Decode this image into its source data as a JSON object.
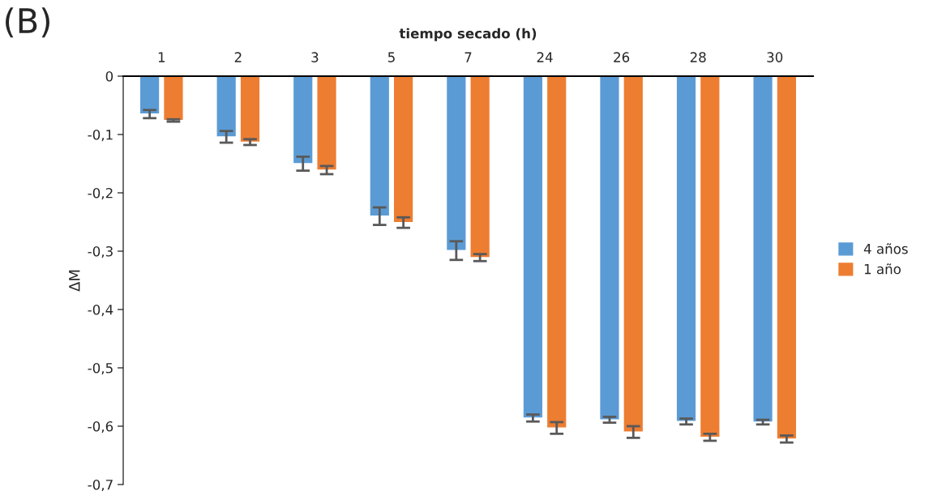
{
  "chart_data": {
    "type": "bar",
    "xlabel": "tiempo secado (h)",
    "ylabel": "ΔM",
    "categories": [
      "1",
      "2",
      "3",
      "5",
      "7",
      "24",
      "26",
      "28",
      "30"
    ],
    "series": [
      {
        "name": "4 años",
        "color": "#5b9bd5",
        "values": [
          -0.065,
          -0.104,
          -0.15,
          -0.24,
          -0.299,
          -0.586,
          -0.589,
          -0.592,
          -0.593
        ],
        "errors": [
          0.007,
          0.01,
          0.012,
          0.015,
          0.016,
          0.006,
          0.005,
          0.005,
          0.004
        ]
      },
      {
        "name": "1 año",
        "color": "#ed7d31",
        "values": [
          -0.076,
          -0.113,
          -0.161,
          -0.251,
          -0.311,
          -0.603,
          -0.61,
          -0.619,
          -0.622
        ],
        "errors": [
          0.002,
          0.005,
          0.007,
          0.009,
          0.006,
          0.01,
          0.01,
          0.006,
          0.006
        ]
      }
    ],
    "ylim": [
      -0.7,
      0
    ],
    "yticks": [
      0,
      {
        "value": -0.1,
        "label": "-0,1"
      },
      {
        "value": -0.2,
        "label": "-0,2"
      },
      {
        "value": -0.3,
        "label": "-0,3"
      },
      {
        "value": -0.4,
        "label": "-0,4"
      },
      {
        "value": -0.5,
        "label": "-0,5"
      },
      {
        "value": -0.6,
        "label": "-0,6"
      },
      {
        "value": -0.7,
        "label": "-0,7"
      }
    ],
    "grid": false,
    "legend": "right",
    "annotations": [
      "(B)"
    ]
  }
}
